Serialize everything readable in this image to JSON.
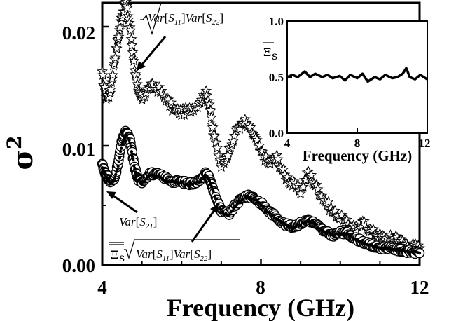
{
  "chart_data": [
    {
      "type": "scatter",
      "xlabel": "Frequency (GHz)",
      "ylabel": "σ2",
      "xlim": [
        4,
        12
      ],
      "ylim": [
        0,
        0.022
      ],
      "xticks": [
        "4",
        "8",
        "12"
      ],
      "yticks": [
        "0.00",
        "0.01",
        "0.02"
      ],
      "series": [
        {
          "marker": "star",
          "x": [
            4.0,
            4.1,
            4.2,
            4.3,
            4.4,
            4.5,
            4.6,
            4.7,
            4.8,
            4.9,
            5.0,
            5.2,
            5.4,
            5.6,
            5.8,
            6.0,
            6.2,
            6.4,
            6.6,
            6.7,
            6.8,
            7.0,
            7.2,
            7.4,
            7.6,
            7.8,
            8.0,
            8.2,
            8.4,
            8.6,
            8.8,
            9.0,
            9.2,
            9.4,
            9.6,
            9.8,
            10.0,
            10.2,
            10.4,
            10.6,
            10.8,
            11.0,
            11.2,
            11.4,
            11.6,
            11.8,
            12.0
          ],
          "y": [
            0.016,
            0.014,
            0.0145,
            0.017,
            0.019,
            0.021,
            0.022,
            0.02,
            0.017,
            0.0145,
            0.014,
            0.015,
            0.0148,
            0.014,
            0.013,
            0.0128,
            0.013,
            0.0135,
            0.0145,
            0.0135,
            0.011,
            0.0085,
            0.0095,
            0.0115,
            0.012,
            0.011,
            0.0095,
            0.0085,
            0.009,
            0.0075,
            0.0068,
            0.0062,
            0.0078,
            0.0065,
            0.0055,
            0.0045,
            0.004,
            0.0034,
            0.0031,
            0.0035,
            0.0028,
            0.0024,
            0.0022,
            0.0024,
            0.0018,
            0.0016,
            0.0014
          ]
        },
        {
          "marker": "circle",
          "x": [
            4.0,
            4.1,
            4.2,
            4.3,
            4.4,
            4.5,
            4.6,
            4.7,
            4.8,
            4.9,
            5.0,
            5.2,
            5.4,
            5.6,
            5.8,
            6.0,
            6.2,
            6.4,
            6.6,
            6.7,
            6.8,
            7.0,
            7.2,
            7.4,
            7.6,
            7.8,
            8.0,
            8.2,
            8.4,
            8.6,
            8.8,
            9.0,
            9.2,
            9.4,
            9.6,
            9.8,
            10.0,
            10.2,
            10.4,
            10.6,
            10.8,
            11.0,
            11.2,
            11.4,
            11.6,
            11.8,
            12.0
          ],
          "y": [
            0.0085,
            0.0075,
            0.007,
            0.0072,
            0.0085,
            0.0105,
            0.0112,
            0.0105,
            0.0085,
            0.0072,
            0.007,
            0.0077,
            0.0076,
            0.0073,
            0.007,
            0.007,
            0.0068,
            0.007,
            0.0077,
            0.0073,
            0.0063,
            0.0045,
            0.0043,
            0.0052,
            0.0058,
            0.0057,
            0.0052,
            0.0045,
            0.004,
            0.0034,
            0.0032,
            0.0035,
            0.0038,
            0.0034,
            0.0028,
            0.0025,
            0.0027,
            0.0026,
            0.0022,
            0.0019,
            0.0016,
            0.0014,
            0.0015,
            0.0013,
            0.0012,
            0.0011,
            0.001
          ]
        },
        {
          "marker": "dot",
          "x": [
            4.0,
            4.1,
            4.2,
            4.3,
            4.4,
            4.5,
            4.6,
            4.7,
            4.8,
            4.9,
            5.0,
            5.2,
            5.4,
            5.6,
            5.8,
            6.0,
            6.2,
            6.4,
            6.6,
            6.7,
            6.8,
            7.0,
            7.2,
            7.4,
            7.6,
            7.8,
            8.0,
            8.2,
            8.4,
            8.6,
            8.8,
            9.0,
            9.2,
            9.4,
            9.6,
            9.8,
            10.0,
            10.2,
            10.4,
            10.6,
            10.8,
            11.0,
            11.2,
            11.4,
            11.6,
            11.8,
            12.0
          ],
          "y": [
            0.0082,
            0.0074,
            0.0069,
            0.0071,
            0.0083,
            0.0102,
            0.0109,
            0.0103,
            0.0084,
            0.0071,
            0.0069,
            0.0075,
            0.0074,
            0.0071,
            0.0069,
            0.0069,
            0.0067,
            0.0069,
            0.0075,
            0.0071,
            0.0062,
            0.0044,
            0.0042,
            0.0051,
            0.0057,
            0.0056,
            0.0051,
            0.0044,
            0.0039,
            0.0034,
            0.0031,
            0.0034,
            0.0037,
            0.0033,
            0.0028,
            0.0025,
            0.0026,
            0.0025,
            0.0021,
            0.0018,
            0.0016,
            0.0014,
            0.0014,
            0.0013,
            0.0012,
            0.0011,
            0.001
          ]
        }
      ],
      "annotations": {
        "stars_label": "Var[S11]Var[S22]",
        "stars_sub_11": "11",
        "stars_sub_22": "22",
        "var_s21_label": "Var[S21]",
        "var_s21_sub": "21",
        "dots_label": "Ξs Var[S11]Var[S22]",
        "xi_symbol": "Ξ",
        "xi_sub": "s"
      }
    },
    {
      "type": "line",
      "ylabel": "Ξs",
      "xlabel": "Frequency (GHz)",
      "xlim": [
        4,
        12
      ],
      "ylim": [
        0,
        1.0
      ],
      "xticks": [
        "4",
        "8",
        "12"
      ],
      "yticks": [
        "0.0",
        "0.5",
        "1.0"
      ],
      "series": [
        {
          "x": [
            4.0,
            4.3,
            4.6,
            5.0,
            5.3,
            5.6,
            6.0,
            6.3,
            6.6,
            7.0,
            7.3,
            7.6,
            8.0,
            8.3,
            8.6,
            9.0,
            9.3,
            9.6,
            10.0,
            10.3,
            10.6,
            10.8,
            11.0,
            11.3,
            11.6,
            12.0
          ],
          "y": [
            0.5,
            0.52,
            0.5,
            0.55,
            0.5,
            0.53,
            0.5,
            0.52,
            0.49,
            0.51,
            0.47,
            0.52,
            0.49,
            0.53,
            0.46,
            0.5,
            0.48,
            0.52,
            0.49,
            0.5,
            0.53,
            0.58,
            0.5,
            0.48,
            0.52,
            0.48
          ]
        }
      ]
    }
  ]
}
